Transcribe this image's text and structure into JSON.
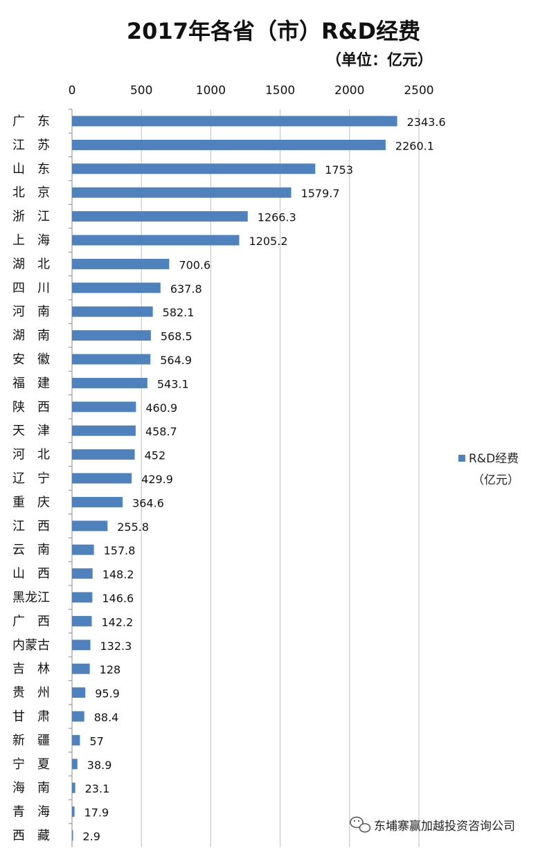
{
  "chart_data": {
    "type": "bar",
    "orientation": "horizontal",
    "title": "2017年各省（市）R&D经费",
    "subtitle": "（单位：亿元）",
    "xlim": [
      0,
      2500
    ],
    "xticks": [
      0,
      500,
      1000,
      1500,
      2000,
      2500
    ],
    "grid": true,
    "legend_position": "right",
    "bar_color": "#4f81bd",
    "series": [
      {
        "name": "R&D经费（亿元）",
        "values": [
          2343.6,
          2260.1,
          1753,
          1579.7,
          1266.3,
          1205.2,
          700.6,
          637.8,
          582.1,
          568.5,
          564.9,
          543.1,
          460.9,
          458.7,
          452,
          429.9,
          364.6,
          255.8,
          157.8,
          148.2,
          146.6,
          142.2,
          132.3,
          128,
          95.9,
          88.4,
          57,
          38.9,
          23.1,
          17.9,
          2.9
        ]
      }
    ],
    "categories": [
      "广　东",
      "江　苏",
      "山　东",
      "北　京",
      "浙　江",
      "上　海",
      "湖　北",
      "四　川",
      "河　南",
      "湖　南",
      "安　徽",
      "福　建",
      "陕　西",
      "天　津",
      "河　北",
      "辽　宁",
      "重　庆",
      "江　西",
      "云　南",
      "山　西",
      "黑龙江",
      "广　西",
      "内蒙古",
      "吉　林",
      "贵　州",
      "甘　肃",
      "新　疆",
      "宁　夏",
      "海　南",
      "青　海",
      "西　藏"
    ],
    "value_labels": [
      "2343.6",
      "2260.1",
      "1753",
      "1579.7",
      "1266.3",
      "1205.2",
      "700.6",
      "637.8",
      "582.1",
      "568.5",
      "564.9",
      "543.1",
      "460.9",
      "458.7",
      "452",
      "429.9",
      "364.6",
      "255.8",
      "157.8",
      "148.2",
      "146.6",
      "142.2",
      "132.3",
      "128",
      "95.9",
      "88.4",
      "57",
      "38.9",
      "23.1",
      "17.9",
      "2.9"
    ],
    "legend": {
      "line1": "R&D经费",
      "line2": "（亿元）"
    }
  },
  "watermark": {
    "icon": "wechat-icon",
    "text": "东埔寨赢加越投资咨询公司"
  }
}
